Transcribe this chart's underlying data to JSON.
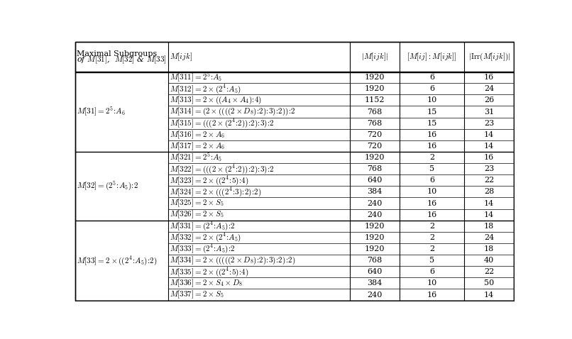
{
  "groups": [
    {
      "label": "$M[31] = 2^5\\!:\\!A_6$",
      "n_rows": 7,
      "rows": [
        [
          "$M[311] = 2^5\\!:\\!A_5$",
          "1920",
          "6",
          "16"
        ],
        [
          "$M[312] = 2 \\times (2^4\\!:\\!A_5)$",
          "1920",
          "6",
          "24"
        ],
        [
          "$M[313] = 2 \\times ((A_4 \\times A_4)\\!:\\!4)$",
          "1152",
          "10",
          "26"
        ],
        [
          "$M[314] = (2 \\times ((((2 \\times D_8)\\!:\\!2)\\!:\\!3)\\!:\\!2))\\!:\\!2$",
          "768",
          "15",
          "31"
        ],
        [
          "$M[315] = (((2 \\times (2^4\\!:\\!2))\\!:\\!2)\\!:\\!3)\\!:\\!2$",
          "768",
          "15",
          "23"
        ],
        [
          "$M[316] = 2 \\times A_6$",
          "720",
          "16",
          "14"
        ],
        [
          "$M[317] = 2 \\times A_6$",
          "720",
          "16",
          "14"
        ]
      ]
    },
    {
      "label": "$M[32] = (2^5\\!:\\!A_5)\\!:\\!2$",
      "n_rows": 6,
      "rows": [
        [
          "$M[321] = 2^5\\!:\\!A_5$",
          "1920",
          "2",
          "16"
        ],
        [
          "$M[322] = (((2 \\times (2^4\\!:\\!2))\\!:\\!2)\\!:\\!3)\\!:\\!2$",
          "768",
          "5",
          "23"
        ],
        [
          "$M[323] = 2 \\times ((2^4\\!:\\!5)\\!:\\!4)$",
          "640",
          "6",
          "22"
        ],
        [
          "$M[324] = 2 \\times (((2^4\\!:\\!3)\\!:\\!2)\\!:\\!2)$",
          "384",
          "10",
          "28"
        ],
        [
          "$M[325] = 2 \\times S_5$",
          "240",
          "16",
          "14"
        ],
        [
          "$M[326] = 2 \\times S_5$",
          "240",
          "16",
          "14"
        ]
      ]
    },
    {
      "label": "$M[33] = 2 \\times ((2^4\\!:\\!A_5)\\!:\\!2)$",
      "n_rows": 7,
      "rows": [
        [
          "$M[331] = (2^4\\!:\\!A_5)\\!:\\!2$",
          "1920",
          "2",
          "18"
        ],
        [
          "$M[332] = 2 \\times (2^4\\!:\\!A_5)$",
          "1920",
          "2",
          "24"
        ],
        [
          "$M[333] = (2^4\\!:\\!A_5)\\!:\\!2$",
          "1920",
          "2",
          "18"
        ],
        [
          "$M[334] = 2 \\times (((((2 \\times D_8)\\!:\\!2)\\!:\\!3)\\!:\\!2)\\!:\\!2)$",
          "768",
          "5",
          "40"
        ],
        [
          "$M[335] = 2 \\times ((2^4\\!:\\!5)\\!:\\!4)$",
          "640",
          "6",
          "22"
        ],
        [
          "$M[336] = 2 \\times S_4 \\times D_8$",
          "384",
          "10",
          "50"
        ],
        [
          "$M[337] = 2 \\times S_5$",
          "240",
          "16",
          "14"
        ]
      ]
    }
  ],
  "header_col0_line1": "Maximal Subgroups",
  "header_col0_line2": "of $M[31]$,  $M[32]$ & $M[33]$",
  "header_col1": "$M[ijk]$",
  "header_col2": "$|M[ijk]|$",
  "header_col3": "$[M[ij] : M[ijk]]$",
  "header_col4": "$|\\mathrm{Irr}(M[ijk])|$",
  "col_props": [
    0.212,
    0.415,
    0.112,
    0.148,
    0.113
  ],
  "font_size": 8.0,
  "total_rows": 20,
  "header_rows": 2
}
